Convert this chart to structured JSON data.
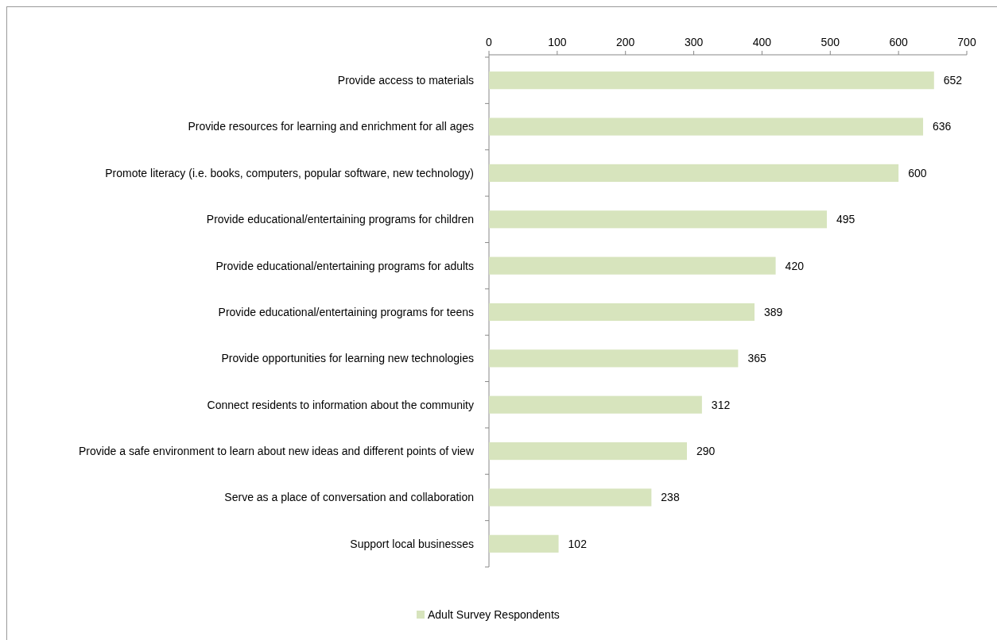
{
  "chart_data": {
    "type": "bar",
    "orientation": "horizontal",
    "categories": [
      "Provide access to materials",
      "Provide resources for learning and enrichment for all ages",
      "Promote literacy (i.e. books, computers, popular software, new technology)",
      "Provide educational/entertaining programs for children",
      "Provide educational/entertaining programs for adults",
      "Provide educational/entertaining programs for teens",
      "Provide opportunities for learning new technologies",
      "Connect residents to information about the community",
      "Provide a safe environment to learn about new ideas and different points of view",
      "Serve as a place of conversation and collaboration",
      "Support local businesses"
    ],
    "series": [
      {
        "name": "Adult Survey Respondents",
        "color": "#d7e4bd",
        "values": [
          652,
          636,
          600,
          495,
          420,
          389,
          365,
          312,
          290,
          238,
          102
        ]
      }
    ],
    "xlim": [
      0,
      700
    ],
    "xticks": [
      0,
      100,
      200,
      300,
      400,
      500,
      600,
      700
    ],
    "data_labels": true,
    "legend": "bottom",
    "grid": false
  }
}
